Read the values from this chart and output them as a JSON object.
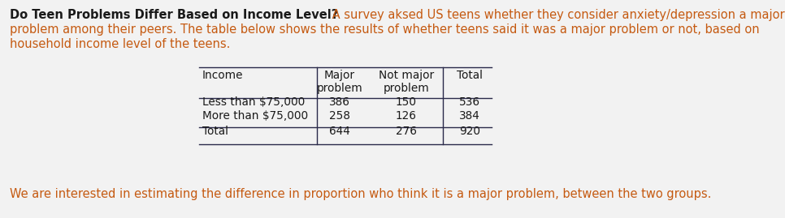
{
  "title_bold": "Do Teen Problems Differ Based on Income Level?",
  "title_rest": " A survey aksed US teens whether they consider anxiety/depression a major\nproblem among their peers. The table below shows the results of whether teens said it was a major problem or not, based on\nhousehold income level of the teens.",
  "footer": "We are interested in estimating the difference in proportion who think it is a major problem, between the two groups.",
  "dark_color": "#1a1a1a",
  "orange_color": "#c55a11",
  "bg_color": "#f2f2f2",
  "table_header": [
    "Income",
    "Major\nproblem",
    "Not major\nproblem",
    "Total"
  ],
  "table_rows": [
    [
      "Less than $75,000",
      "386",
      "150",
      "536"
    ],
    [
      "More than $75,000",
      "258",
      "126",
      "384"
    ],
    [
      "Total",
      "644",
      "276",
      "920"
    ]
  ],
  "font_size": 10.5,
  "table_font_size": 9.8,
  "footer_font_size": 10.5
}
